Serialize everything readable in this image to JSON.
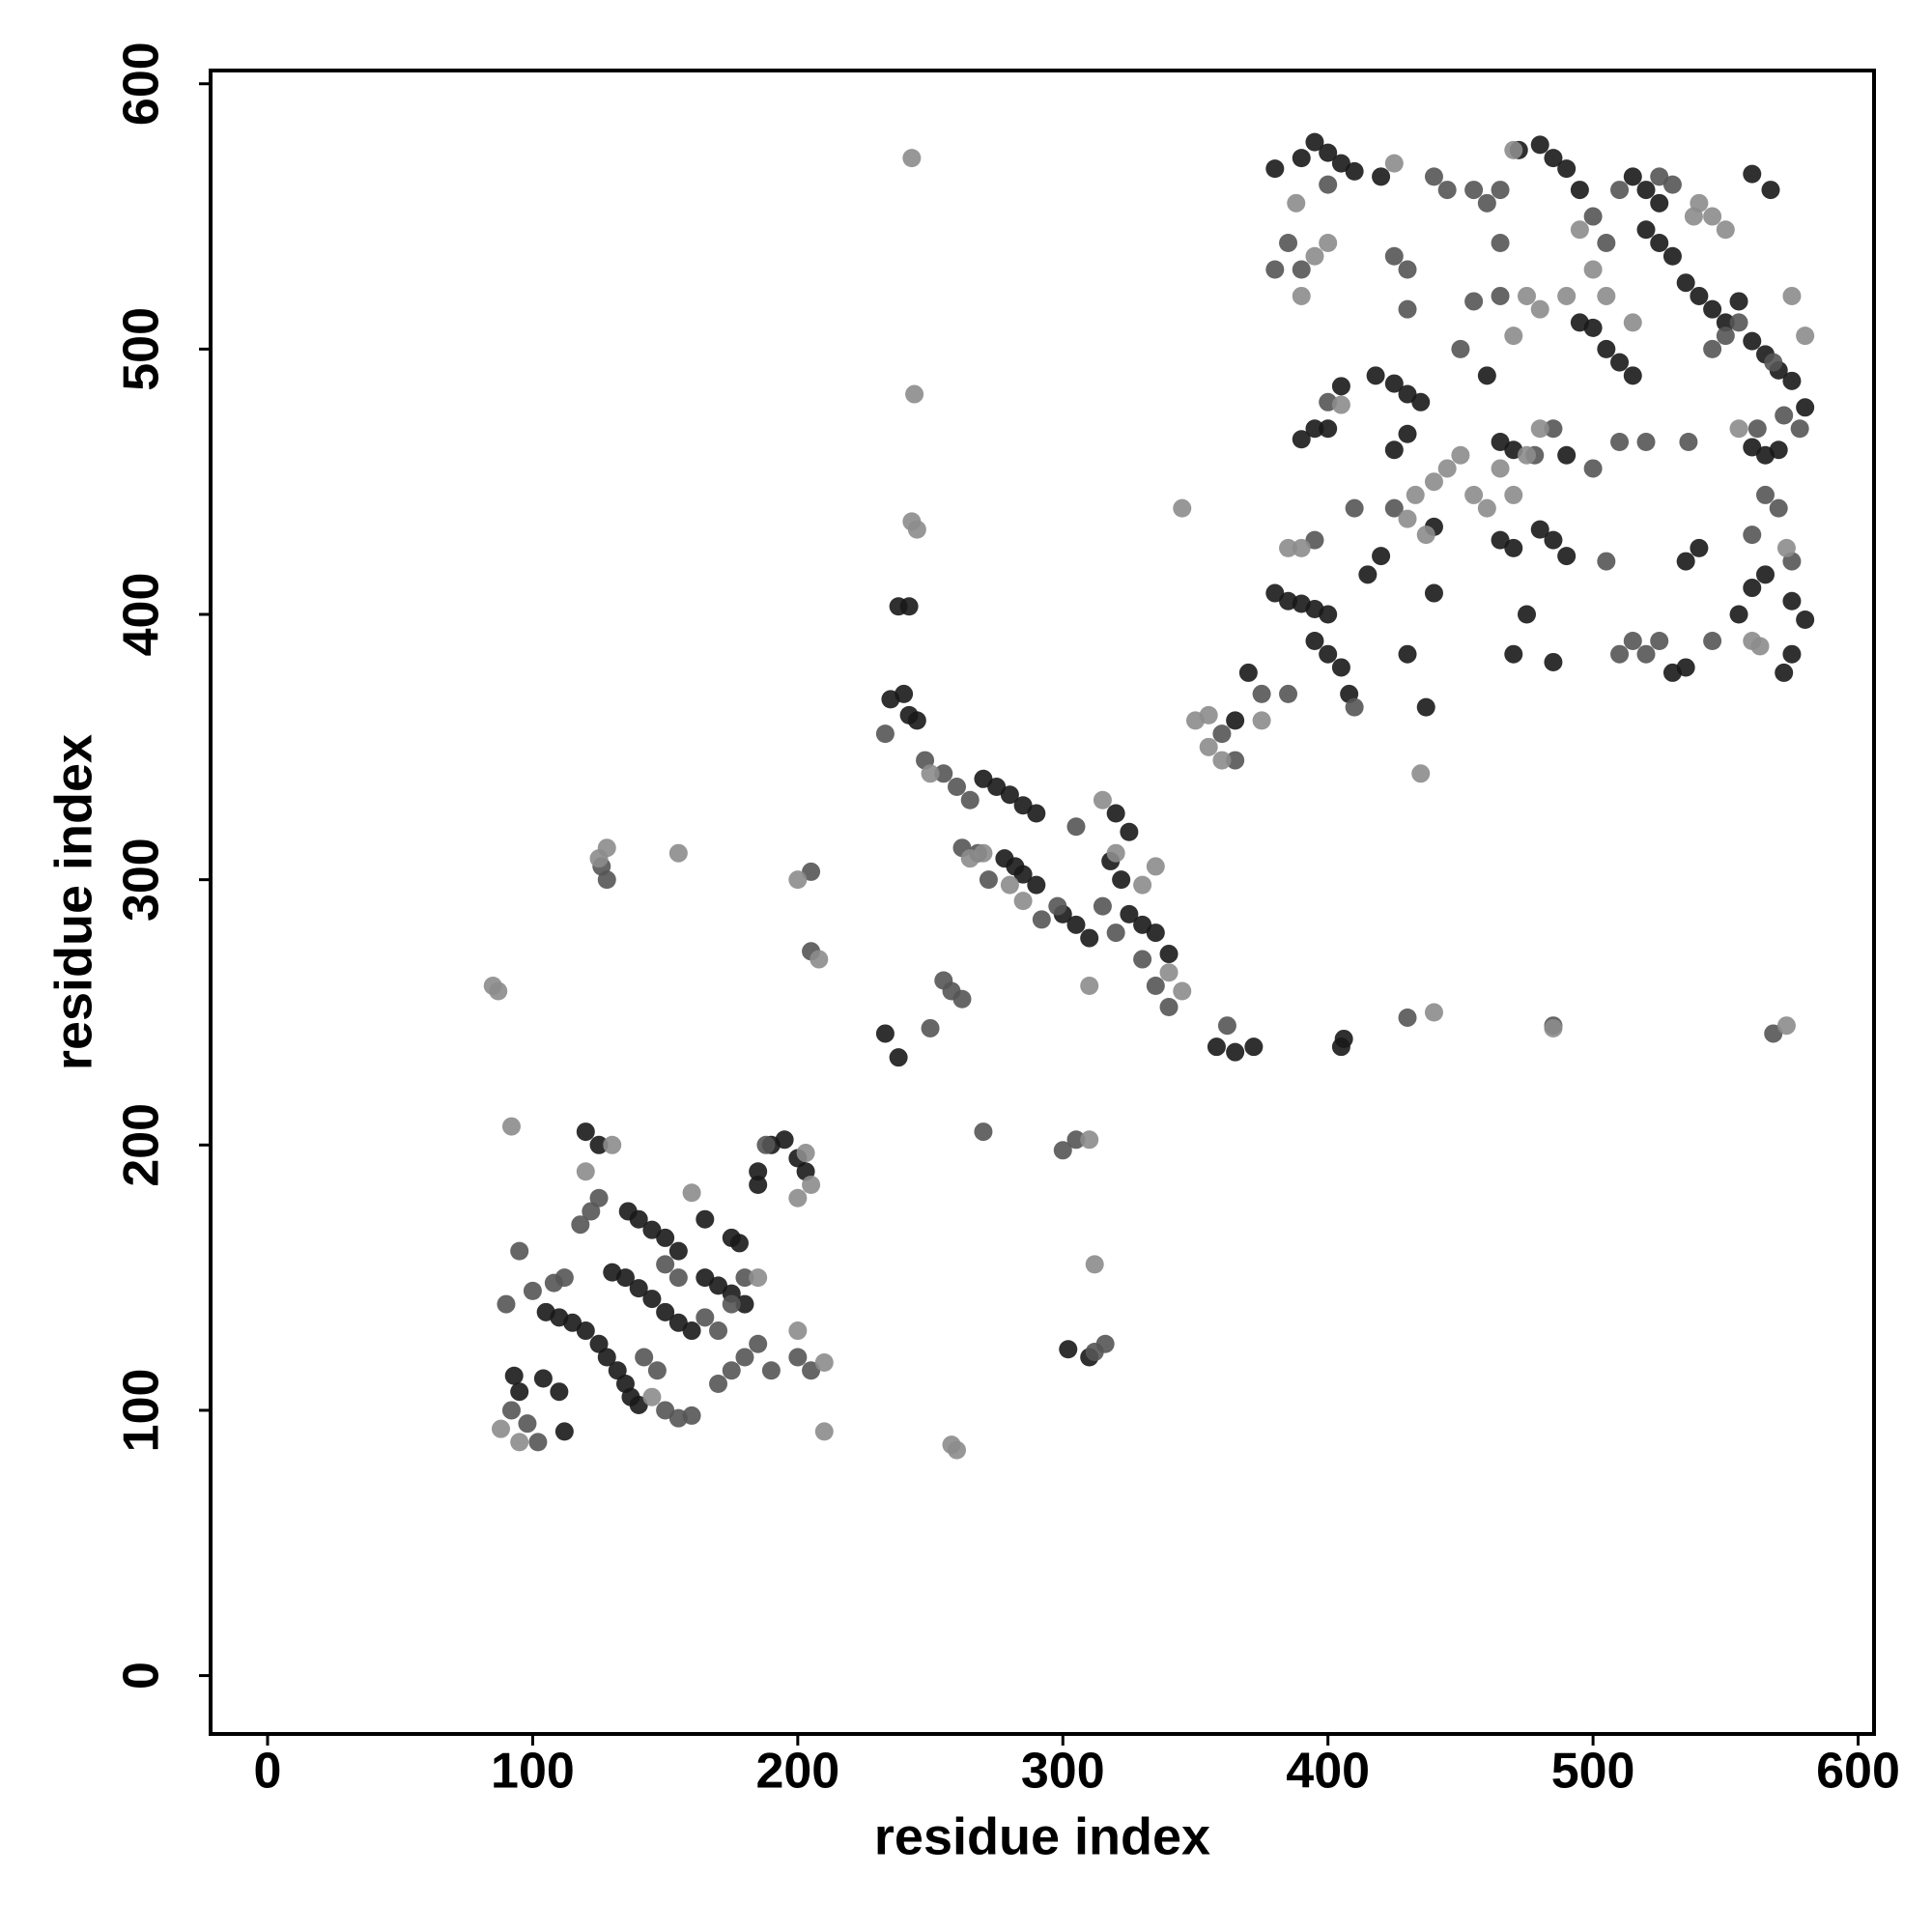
{
  "chart_data": {
    "type": "scatter",
    "xlabel": "residue index",
    "ylabel": "residue index",
    "xlim": [
      -21.5,
      606
    ],
    "ylim": [
      -22,
      605
    ],
    "xticks": [
      0,
      100,
      200,
      300,
      400,
      500,
      600
    ],
    "yticks": [
      0,
      100,
      200,
      300,
      400,
      500,
      600
    ],
    "series": [
      {
        "color": "#1a1a1a",
        "x": [
          93,
          95,
          104,
          110,
          112,
          105,
          110,
          115,
          120,
          125,
          128,
          132,
          135,
          137,
          140,
          130,
          135,
          140,
          145,
          150,
          155,
          160,
          136,
          140,
          145,
          150,
          155,
          165,
          170,
          175,
          180,
          165,
          175,
          178,
          185,
          190,
          195,
          200,
          185,
          120,
          125,
          203,
          235,
          240,
          242,
          245,
          238,
          242,
          270,
          275,
          280,
          285,
          290,
          278,
          282,
          285,
          290,
          300,
          305,
          310,
          320,
          325,
          318,
          322,
          325,
          330,
          335,
          340,
          302,
          310,
          358,
          365,
          372,
          370,
          365,
          233,
          238,
          405,
          406,
          390,
          395,
          400,
          405,
          410,
          420,
          380,
          395,
          400,
          390,
          395,
          400,
          405,
          408,
          400,
          395,
          390,
          385,
          380,
          405,
          418,
          425,
          430,
          435,
          425,
          430,
          440,
          440,
          460,
          465,
          470,
          465,
          470,
          480,
          485,
          490,
          490,
          470,
          475,
          485,
          495,
          500,
          505,
          510,
          515,
          520,
          525,
          530,
          535,
          540,
          545,
          550,
          555,
          560,
          565,
          570,
          575,
          580,
          570,
          565,
          560,
          555,
          560,
          565,
          575,
          580,
          560,
          567,
          472,
          480,
          485,
          490,
          495,
          515,
          520,
          525,
          535,
          540,
          530,
          535,
          572,
          575,
          430,
          437,
          420,
          415
        ],
        "values": [
          113,
          107,
          112,
          107,
          92,
          137,
          135,
          133,
          130,
          125,
          120,
          115,
          110,
          105,
          102,
          152,
          150,
          146,
          142,
          137,
          133,
          130,
          175,
          172,
          168,
          165,
          160,
          150,
          147,
          144,
          140,
          172,
          165,
          163,
          190,
          200,
          202,
          195,
          185,
          205,
          200,
          190,
          368,
          370,
          362,
          360,
          403,
          403,
          338,
          335,
          332,
          328,
          325,
          308,
          305,
          302,
          298,
          287,
          283,
          278,
          325,
          318,
          307,
          300,
          287,
          283,
          280,
          272,
          123,
          120,
          237,
          235,
          237,
          378,
          360,
          242,
          233,
          237,
          240,
          572,
          578,
          574,
          570,
          567,
          565,
          568,
          470,
          470,
          466,
          390,
          385,
          380,
          370,
          400,
          402,
          404,
          405,
          408,
          486,
          490,
          487,
          483,
          480,
          462,
          468,
          433,
          408,
          490,
          465,
          462,
          428,
          425,
          432,
          428,
          422,
          460,
          385,
          400,
          382,
          510,
          508,
          500,
          495,
          490,
          545,
          540,
          535,
          525,
          520,
          515,
          510,
          518,
          503,
          498,
          492,
          488,
          478,
          462,
          460,
          463,
          400,
          410,
          415,
          405,
          398,
          566,
          560,
          575,
          577,
          572,
          568,
          560,
          565,
          560,
          555,
          420,
          425,
          378,
          380,
          378,
          385,
          385,
          365,
          422,
          415
        ]
      },
      {
        "color": "#555555",
        "x": [
          90,
          92,
          98,
          102,
          108,
          112,
          118,
          122,
          125,
          128,
          126,
          95,
          100,
          150,
          155,
          160,
          170,
          175,
          180,
          185,
          190,
          200,
          205,
          142,
          147,
          165,
          170,
          175,
          150,
          155,
          188,
          180,
          205,
          205,
          233,
          248,
          255,
          260,
          262,
          268,
          272,
          292,
          298,
          305,
          315,
          320,
          330,
          335,
          340,
          255,
          258,
          262,
          250,
          265,
          270,
          305,
          300,
          362,
          360,
          365,
          410,
          375,
          385,
          385,
          390,
          380,
          400,
          410,
          425,
          430,
          425,
          430,
          450,
          455,
          465,
          465,
          478,
          485,
          500,
          505,
          510,
          515,
          520,
          525,
          510,
          520,
          545,
          550,
          555,
          562,
          568,
          572,
          578,
          560,
          565,
          570,
          575,
          440,
          445,
          455,
          460,
          465,
          500,
          505,
          510,
          525,
          530,
          536,
          545,
          430,
          485,
          568,
          312,
          316,
          395,
          400
        ],
        "values": [
          140,
          100,
          95,
          88,
          148,
          150,
          170,
          175,
          180,
          300,
          305,
          160,
          145,
          100,
          97,
          98,
          110,
          115,
          120,
          125,
          115,
          120,
          115,
          120,
          115,
          135,
          130,
          140,
          155,
          150,
          200,
          150,
          273,
          303,
          355,
          345,
          340,
          335,
          312,
          310,
          300,
          285,
          290,
          320,
          290,
          280,
          270,
          260,
          252,
          262,
          258,
          255,
          244,
          330,
          205,
          202,
          198,
          245,
          355,
          345,
          365,
          370,
          370,
          540,
          530,
          530,
          562,
          440,
          440,
          515,
          535,
          530,
          500,
          518,
          540,
          520,
          460,
          470,
          455,
          420,
          385,
          390,
          385,
          390,
          465,
          465,
          500,
          505,
          510,
          470,
          495,
          475,
          470,
          430,
          445,
          440,
          420,
          565,
          560,
          560,
          555,
          560,
          550,
          540,
          560,
          565,
          562,
          465,
          390,
          248,
          245,
          242,
          122,
          125,
          428,
          480
        ]
      },
      {
        "color": "#8c8c8c",
        "x": [
          85,
          87,
          92,
          120,
          130,
          125,
          128,
          155,
          88,
          95,
          200,
          205,
          200,
          203,
          210,
          208,
          200,
          210,
          160,
          145,
          185,
          243,
          244,
          243,
          245,
          250,
          260,
          258,
          265,
          270,
          280,
          285,
          315,
          320,
          330,
          335,
          340,
          345,
          310,
          312,
          310,
          345,
          350,
          355,
          360,
          355,
          375,
          385,
          390,
          390,
          395,
          388,
          400,
          425,
          435,
          440,
          445,
          450,
          455,
          460,
          465,
          470,
          475,
          480,
          470,
          475,
          480,
          490,
          495,
          500,
          505,
          515,
          540,
          545,
          550,
          575,
          580,
          573,
          560,
          563,
          538,
          555,
          430,
          433,
          437,
          440,
          485,
          573,
          470,
          405
        ],
        "values": [
          260,
          258,
          207,
          190,
          200,
          308,
          312,
          310,
          93,
          88,
          130,
          185,
          180,
          197,
          92,
          270,
          300,
          118,
          182,
          105,
          150,
          572,
          483,
          435,
          432,
          340,
          85,
          87,
          308,
          310,
          298,
          292,
          330,
          310,
          298,
          305,
          265,
          258,
          260,
          155,
          202,
          440,
          360,
          350,
          345,
          362,
          360,
          425,
          425,
          520,
          535,
          555,
          540,
          570,
          340,
          450,
          455,
          460,
          445,
          440,
          455,
          445,
          460,
          470,
          505,
          520,
          515,
          520,
          545,
          530,
          520,
          510,
          555,
          550,
          545,
          520,
          505,
          425,
          390,
          388,
          550,
          470,
          436,
          445,
          430,
          250,
          244,
          245,
          575,
          479
        ]
      }
    ]
  }
}
